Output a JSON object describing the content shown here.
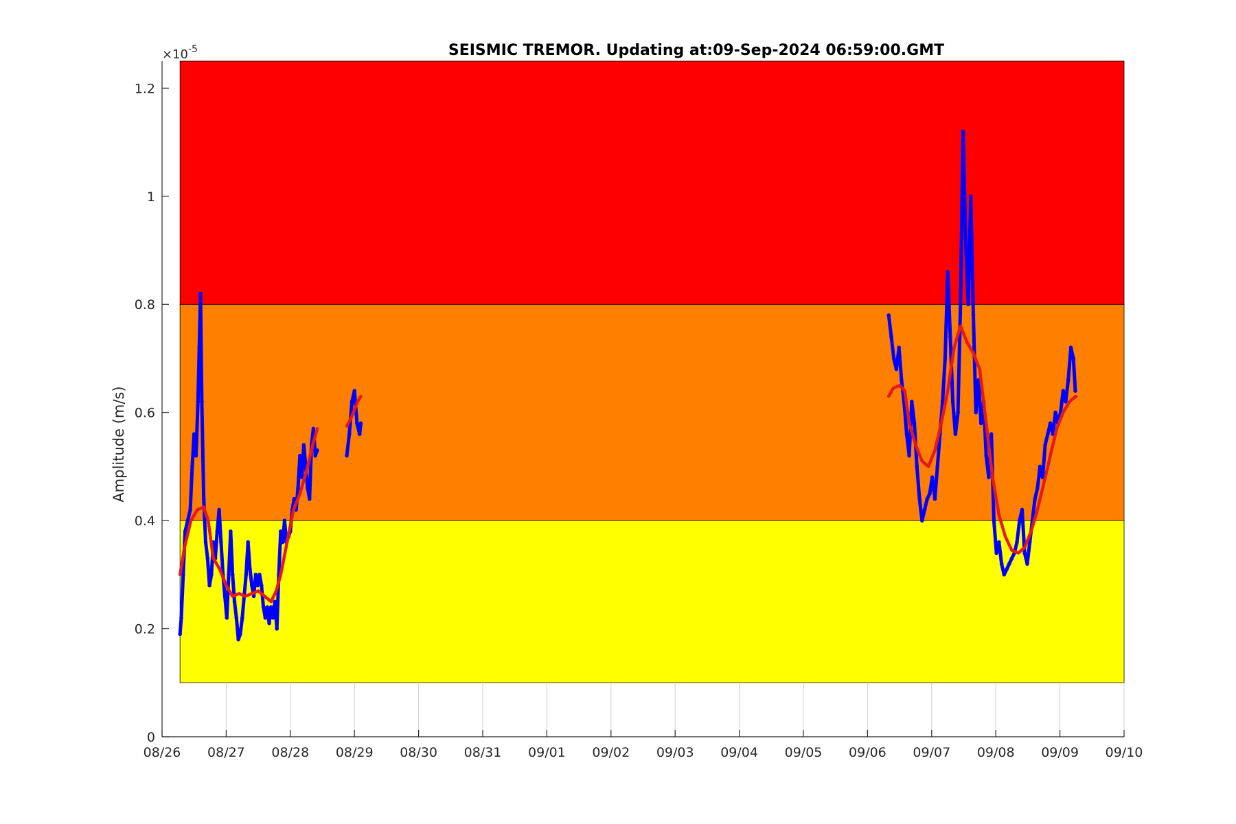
{
  "chart_data": {
    "type": "line",
    "title": "SEISMIC TREMOR. Updating at:09-Sep-2024 06:59:00.GMT",
    "ylabel": "Amplitude (m/s)",
    "xlabel": "",
    "y_multiplier_base": "×10",
    "y_multiplier_exponent": "-5",
    "x_ticks": [
      "08/26",
      "08/27",
      "08/28",
      "08/29",
      "08/30",
      "08/31",
      "09/01",
      "09/02",
      "09/03",
      "09/04",
      "09/05",
      "09/06",
      "09/07",
      "09/08",
      "09/09",
      "09/10"
    ],
    "xlim_days": [
      0,
      15
    ],
    "ylim": [
      0,
      1.25
    ],
    "y_ticks": [
      {
        "value": 0,
        "label": "0"
      },
      {
        "value": 0.2,
        "label": "0.2"
      },
      {
        "value": 0.4,
        "label": "0.4"
      },
      {
        "value": 0.6,
        "label": "0.6"
      },
      {
        "value": 0.8,
        "label": "0.8"
      },
      {
        "value": 1.0,
        "label": "1"
      },
      {
        "value": 1.2,
        "label": "1.2"
      }
    ],
    "grid": "x-only",
    "bands": [
      {
        "name": "low",
        "from": 0.1,
        "to": 0.4,
        "color": "#ffff00"
      },
      {
        "name": "medium",
        "from": 0.4,
        "to": 0.8,
        "color": "#ff8000"
      },
      {
        "name": "high",
        "from": 0.8,
        "to": 1.25,
        "color": "#ff0000"
      }
    ],
    "band_x_range_days": [
      0.28,
      15
    ],
    "series": [
      {
        "role": "raw",
        "color": "#0000ff",
        "segments": [
          [
            [
              0.28,
              0.19
            ],
            [
              0.3,
              0.22
            ],
            [
              0.33,
              0.3
            ],
            [
              0.36,
              0.38
            ],
            [
              0.4,
              0.4
            ],
            [
              0.44,
              0.42
            ],
            [
              0.47,
              0.5
            ],
            [
              0.5,
              0.56
            ],
            [
              0.53,
              0.52
            ],
            [
              0.56,
              0.62
            ],
            [
              0.58,
              0.72
            ],
            [
              0.6,
              0.82
            ],
            [
              0.62,
              0.62
            ],
            [
              0.65,
              0.44
            ],
            [
              0.68,
              0.36
            ],
            [
              0.71,
              0.33
            ],
            [
              0.74,
              0.28
            ],
            [
              0.77,
              0.3
            ],
            [
              0.8,
              0.36
            ],
            [
              0.83,
              0.33
            ],
            [
              0.86,
              0.38
            ],
            [
              0.89,
              0.42
            ],
            [
              0.92,
              0.36
            ],
            [
              0.95,
              0.3
            ],
            [
              0.98,
              0.26
            ],
            [
              1.01,
              0.22
            ],
            [
              1.04,
              0.3
            ],
            [
              1.07,
              0.38
            ],
            [
              1.1,
              0.3
            ],
            [
              1.13,
              0.25
            ],
            [
              1.16,
              0.22
            ],
            [
              1.19,
              0.18
            ],
            [
              1.22,
              0.19
            ],
            [
              1.25,
              0.22
            ],
            [
              1.28,
              0.26
            ],
            [
              1.31,
              0.3
            ],
            [
              1.34,
              0.36
            ],
            [
              1.37,
              0.31
            ],
            [
              1.4,
              0.28
            ],
            [
              1.43,
              0.26
            ],
            [
              1.46,
              0.3
            ],
            [
              1.49,
              0.28
            ],
            [
              1.52,
              0.3
            ],
            [
              1.55,
              0.28
            ],
            [
              1.58,
              0.24
            ],
            [
              1.61,
              0.22
            ],
            [
              1.64,
              0.24
            ],
            [
              1.67,
              0.21
            ],
            [
              1.7,
              0.24
            ],
            [
              1.73,
              0.22
            ],
            [
              1.76,
              0.25
            ],
            [
              1.79,
              0.2
            ],
            [
              1.82,
              0.3
            ],
            [
              1.85,
              0.38
            ],
            [
              1.88,
              0.36
            ],
            [
              1.91,
              0.4
            ],
            [
              1.94,
              0.36
            ],
            [
              1.97,
              0.37
            ],
            [
              2.0,
              0.38
            ],
            [
              2.03,
              0.42
            ],
            [
              2.06,
              0.44
            ],
            [
              2.09,
              0.42
            ],
            [
              2.12,
              0.46
            ],
            [
              2.15,
              0.52
            ],
            [
              2.18,
              0.48
            ],
            [
              2.21,
              0.54
            ],
            [
              2.24,
              0.5
            ],
            [
              2.27,
              0.46
            ],
            [
              2.3,
              0.44
            ],
            [
              2.33,
              0.54
            ],
            [
              2.36,
              0.57
            ],
            [
              2.39,
              0.52
            ],
            [
              2.42,
              0.53
            ]
          ],
          [
            [
              2.88,
              0.52
            ],
            [
              2.92,
              0.56
            ],
            [
              2.96,
              0.62
            ],
            [
              3.0,
              0.64
            ],
            [
              3.04,
              0.58
            ],
            [
              3.08,
              0.56
            ],
            [
              3.1,
              0.58
            ]
          ],
          [
            [
              11.33,
              0.78
            ],
            [
              11.37,
              0.74
            ],
            [
              11.41,
              0.7
            ],
            [
              11.45,
              0.68
            ],
            [
              11.49,
              0.72
            ],
            [
              11.53,
              0.66
            ],
            [
              11.57,
              0.62
            ],
            [
              11.61,
              0.56
            ],
            [
              11.65,
              0.52
            ],
            [
              11.69,
              0.62
            ],
            [
              11.73,
              0.58
            ],
            [
              11.77,
              0.5
            ],
            [
              11.81,
              0.44
            ],
            [
              11.85,
              0.4
            ],
            [
              11.89,
              0.42
            ],
            [
              11.93,
              0.44
            ],
            [
              11.97,
              0.45
            ],
            [
              12.01,
              0.48
            ],
            [
              12.05,
              0.44
            ],
            [
              12.09,
              0.5
            ],
            [
              12.13,
              0.56
            ],
            [
              12.17,
              0.62
            ],
            [
              12.21,
              0.7
            ],
            [
              12.25,
              0.86
            ],
            [
              12.29,
              0.74
            ],
            [
              12.33,
              0.62
            ],
            [
              12.37,
              0.56
            ],
            [
              12.41,
              0.6
            ],
            [
              12.45,
              0.8
            ],
            [
              12.49,
              1.12
            ],
            [
              12.53,
              0.92
            ],
            [
              12.57,
              0.8
            ],
            [
              12.61,
              1.0
            ],
            [
              12.65,
              0.78
            ],
            [
              12.69,
              0.6
            ],
            [
              12.73,
              0.66
            ],
            [
              12.77,
              0.58
            ],
            [
              12.81,
              0.62
            ],
            [
              12.85,
              0.52
            ],
            [
              12.89,
              0.48
            ],
            [
              12.93,
              0.56
            ],
            [
              12.97,
              0.4
            ],
            [
              13.01,
              0.34
            ],
            [
              13.05,
              0.36
            ],
            [
              13.09,
              0.32
            ],
            [
              13.13,
              0.3
            ],
            [
              13.17,
              0.31
            ],
            [
              13.21,
              0.32
            ],
            [
              13.25,
              0.33
            ],
            [
              13.29,
              0.34
            ],
            [
              13.33,
              0.36
            ],
            [
              13.37,
              0.4
            ],
            [
              13.41,
              0.42
            ],
            [
              13.45,
              0.34
            ],
            [
              13.49,
              0.32
            ],
            [
              13.53,
              0.36
            ],
            [
              13.57,
              0.4
            ],
            [
              13.61,
              0.44
            ],
            [
              13.65,
              0.46
            ],
            [
              13.69,
              0.5
            ],
            [
              13.73,
              0.48
            ],
            [
              13.77,
              0.54
            ],
            [
              13.81,
              0.56
            ],
            [
              13.85,
              0.58
            ],
            [
              13.89,
              0.56
            ],
            [
              13.93,
              0.6
            ],
            [
              13.97,
              0.58
            ],
            [
              14.01,
              0.6
            ],
            [
              14.05,
              0.64
            ],
            [
              14.09,
              0.62
            ],
            [
              14.13,
              0.66
            ],
            [
              14.17,
              0.72
            ],
            [
              14.21,
              0.7
            ],
            [
              14.24,
              0.64
            ]
          ]
        ]
      },
      {
        "role": "smoothed",
        "color": "#e31a1c",
        "segments": [
          [
            [
              0.28,
              0.3
            ],
            [
              0.35,
              0.35
            ],
            [
              0.45,
              0.4
            ],
            [
              0.55,
              0.42
            ],
            [
              0.65,
              0.425
            ],
            [
              0.72,
              0.4
            ],
            [
              0.8,
              0.33
            ],
            [
              0.9,
              0.31
            ],
            [
              1.0,
              0.28
            ],
            [
              1.1,
              0.26
            ],
            [
              1.2,
              0.265
            ],
            [
              1.3,
              0.26
            ],
            [
              1.4,
              0.265
            ],
            [
              1.5,
              0.27
            ],
            [
              1.6,
              0.26
            ],
            [
              1.7,
              0.25
            ],
            [
              1.78,
              0.27
            ],
            [
              1.85,
              0.3
            ],
            [
              1.95,
              0.36
            ],
            [
              2.05,
              0.42
            ],
            [
              2.15,
              0.45
            ],
            [
              2.25,
              0.49
            ],
            [
              2.35,
              0.54
            ],
            [
              2.42,
              0.57
            ]
          ],
          [
            [
              2.88,
              0.575
            ],
            [
              2.95,
              0.59
            ],
            [
              3.05,
              0.62
            ],
            [
              3.1,
              0.63
            ]
          ],
          [
            [
              11.33,
              0.63
            ],
            [
              11.4,
              0.645
            ],
            [
              11.5,
              0.65
            ],
            [
              11.58,
              0.64
            ],
            [
              11.65,
              0.58
            ],
            [
              11.75,
              0.54
            ],
            [
              11.85,
              0.51
            ],
            [
              11.95,
              0.5
            ],
            [
              12.05,
              0.53
            ],
            [
              12.15,
              0.58
            ],
            [
              12.25,
              0.64
            ],
            [
              12.35,
              0.72
            ],
            [
              12.45,
              0.76
            ],
            [
              12.55,
              0.73
            ],
            [
              12.65,
              0.71
            ],
            [
              12.75,
              0.68
            ],
            [
              12.85,
              0.58
            ],
            [
              12.95,
              0.48
            ],
            [
              13.05,
              0.41
            ],
            [
              13.15,
              0.37
            ],
            [
              13.25,
              0.345
            ],
            [
              13.35,
              0.34
            ],
            [
              13.45,
              0.35
            ],
            [
              13.55,
              0.38
            ],
            [
              13.65,
              0.42
            ],
            [
              13.75,
              0.47
            ],
            [
              13.85,
              0.52
            ],
            [
              13.95,
              0.57
            ],
            [
              14.05,
              0.6
            ],
            [
              14.15,
              0.62
            ],
            [
              14.25,
              0.63
            ]
          ]
        ]
      }
    ]
  }
}
